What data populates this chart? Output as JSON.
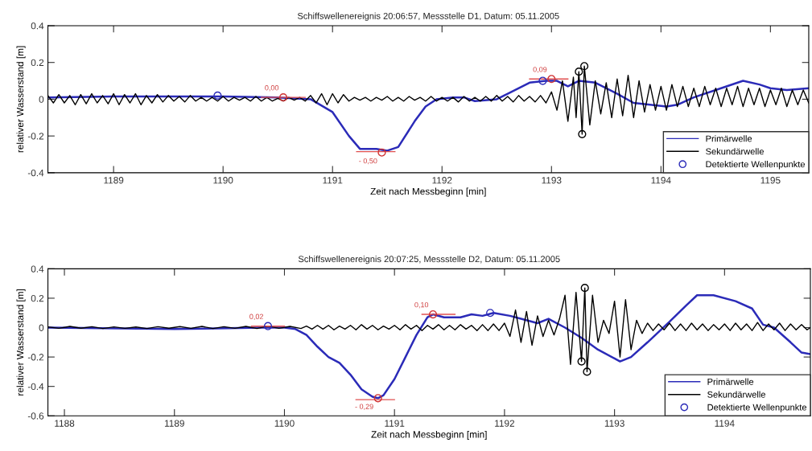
{
  "chart_data": [
    {
      "type": "line",
      "title": "Schiffswellenereignis 20:06:57, Messstelle D1, Datum: 05.11.2005",
      "xlabel": "Zeit nach Messbeginn [min]",
      "ylabel": "relativer Wasserstand [m]",
      "xlim": [
        1188.4,
        1195.35
      ],
      "ylim": [
        -0.4,
        0.4
      ],
      "xticks": [
        1189,
        1190,
        1191,
        1192,
        1193,
        1194,
        1195
      ],
      "yticks": [
        -0.4,
        -0.2,
        0,
        0.2,
        0.4
      ],
      "grid": false,
      "legend": "bottom right",
      "annotations": [
        {
          "text": "0,00",
          "x": 1190.55,
          "y": 0.01
        },
        {
          "text": "- 0,50",
          "x": 1191.45,
          "y": -0.29
        },
        {
          "text": "0,09",
          "x": 1193.0,
          "y": 0.11
        }
      ],
      "series": [
        {
          "name": "Sekundärwelle",
          "type": "line",
          "color": "#000000",
          "x": [
            1188.4,
            1188.45,
            1188.5,
            1188.55,
            1188.6,
            1188.65,
            1188.7,
            1188.75,
            1188.8,
            1188.85,
            1188.9,
            1188.95,
            1189.0,
            1189.05,
            1189.1,
            1189.15,
            1189.2,
            1189.25,
            1189.3,
            1189.35,
            1189.4,
            1189.45,
            1189.5,
            1189.55,
            1189.6,
            1189.65,
            1189.7,
            1189.75,
            1189.8,
            1189.85,
            1189.9,
            1189.95,
            1190.0,
            1190.05,
            1190.1,
            1190.15,
            1190.2,
            1190.25,
            1190.3,
            1190.35,
            1190.4,
            1190.45,
            1190.5,
            1190.55,
            1190.6,
            1190.65,
            1190.7,
            1190.75,
            1190.8,
            1190.85,
            1190.9,
            1190.95,
            1191.0,
            1191.05,
            1191.1,
            1191.15,
            1191.2,
            1191.25,
            1191.3,
            1191.35,
            1191.4,
            1191.45,
            1191.5,
            1191.55,
            1191.6,
            1191.65,
            1191.7,
            1191.75,
            1191.8,
            1191.85,
            1191.9,
            1191.95,
            1192.0,
            1192.05,
            1192.1,
            1192.15,
            1192.2,
            1192.25,
            1192.3,
            1192.35,
            1192.4,
            1192.45,
            1192.5,
            1192.55,
            1192.6,
            1192.65,
            1192.7,
            1192.75,
            1192.8,
            1192.85,
            1192.9,
            1192.95,
            1193.0,
            1193.05,
            1193.1,
            1193.15,
            1193.2,
            1193.225,
            1193.25,
            1193.28,
            1193.3,
            1193.35,
            1193.4,
            1193.45,
            1193.5,
            1193.55,
            1193.6,
            1193.65,
            1193.7,
            1193.75,
            1193.8,
            1193.85,
            1193.9,
            1193.95,
            1194.0,
            1194.05,
            1194.1,
            1194.15,
            1194.2,
            1194.25,
            1194.3,
            1194.35,
            1194.4,
            1194.45,
            1194.5,
            1194.55,
            1194.6,
            1194.65,
            1194.7,
            1194.75,
            1194.8,
            1194.85,
            1194.9,
            1194.95,
            1195.0,
            1195.05,
            1195.1,
            1195.15,
            1195.2,
            1195.25,
            1195.3,
            1195.35
          ],
          "values": [
            0.02,
            -0.02,
            0.025,
            -0.02,
            0.02,
            -0.03,
            0.025,
            -0.025,
            0.03,
            -0.02,
            0.02,
            -0.025,
            0.03,
            -0.03,
            0.025,
            -0.02,
            0.03,
            -0.03,
            0.02,
            -0.02,
            0.025,
            -0.015,
            0.02,
            -0.01,
            0.015,
            -0.015,
            0.02,
            -0.01,
            0.01,
            -0.01,
            0.01,
            -0.01,
            0.015,
            -0.01,
            0.01,
            -0.005,
            0.01,
            -0.01,
            0.015,
            -0.01,
            0.01,
            -0.01,
            0.005,
            -0.01,
            0.01,
            -0.005,
            0.01,
            -0.01,
            0.02,
            -0.02,
            0.03,
            -0.03,
            0.03,
            -0.02,
            0.025,
            -0.01,
            0.01,
            -0.005,
            0.01,
            -0.01,
            0.01,
            -0.005,
            0.015,
            -0.01,
            0.01,
            -0.01,
            0.015,
            -0.005,
            0.01,
            -0.01,
            0.015,
            -0.01,
            0.01,
            -0.01,
            0.01,
            -0.015,
            0.015,
            -0.01,
            0.01,
            -0.01,
            0.015,
            -0.01,
            0.02,
            -0.01,
            0.015,
            -0.015,
            0.02,
            -0.01,
            0.015,
            -0.015,
            0.02,
            -0.02,
            0.04,
            -0.06,
            0.1,
            -0.12,
            0.12,
            -0.1,
            0.15,
            -0.19,
            0.18,
            -0.14,
            0.1,
            -0.08,
            0.09,
            -0.1,
            0.11,
            -0.09,
            0.13,
            -0.1,
            0.1,
            -0.07,
            0.08,
            -0.06,
            0.07,
            -0.06,
            0.08,
            -0.04,
            0.07,
            -0.04,
            0.06,
            -0.04,
            0.07,
            -0.03,
            0.06,
            -0.04,
            0.06,
            -0.03,
            0.07,
            -0.04,
            0.06,
            -0.03,
            0.06,
            -0.04,
            0.05,
            -0.03,
            0.06,
            -0.04,
            0.05,
            -0.03,
            0.05,
            -0.02
          ]
        },
        {
          "name": "Primärwelle",
          "type": "line",
          "color": "#2b2bb8",
          "x": [
            1188.4,
            1189.0,
            1190.0,
            1190.5,
            1190.8,
            1191.0,
            1191.15,
            1191.25,
            1191.4,
            1191.5,
            1191.6,
            1191.75,
            1191.85,
            1191.95,
            1192.1,
            1192.2,
            1192.3,
            1192.5,
            1192.6,
            1192.8,
            1192.95,
            1193.05,
            1193.15,
            1193.25,
            1193.4,
            1193.6,
            1193.75,
            1193.9,
            1194.05,
            1194.15,
            1194.3,
            1194.5,
            1194.75,
            1194.9,
            1195.0,
            1195.15,
            1195.35
          ],
          "values": [
            0.01,
            0.015,
            0.015,
            0.01,
            0.0,
            -0.07,
            -0.2,
            -0.27,
            -0.27,
            -0.28,
            -0.26,
            -0.12,
            -0.04,
            0.0,
            0.01,
            0.01,
            -0.01,
            0.0,
            0.03,
            0.09,
            0.1,
            0.1,
            0.07,
            0.1,
            0.09,
            0.03,
            -0.02,
            -0.03,
            -0.04,
            -0.03,
            0.01,
            0.05,
            0.1,
            0.08,
            0.06,
            0.05,
            0.06
          ]
        },
        {
          "color": "#e05050",
          "x": [
            1190.35,
            1190.75
          ],
          "values": [
            0.01,
            0.01
          ]
        },
        {
          "color": "#e05050",
          "x": [
            1191.22,
            1191.57
          ],
          "values": [
            -0.285,
            -0.285
          ]
        },
        {
          "color": "#e05050",
          "x": [
            1192.8,
            1193.15
          ],
          "values": [
            0.11,
            0.11
          ]
        },
        {
          "name": "Detektierte Wellenpunkte",
          "type": "scatter",
          "marker": "circle",
          "color": "#2b2bb8",
          "x": [
            1189.95,
            1192.92
          ],
          "values": [
            0.02,
            0.1
          ]
        },
        {
          "type": "scatter",
          "marker": "circle",
          "color": "#d03030",
          "x": [
            1190.55,
            1191.45,
            1193.0
          ],
          "values": [
            0.01,
            -0.29,
            0.11
          ]
        },
        {
          "type": "scatter",
          "marker": "circle",
          "color": "#000000",
          "x": [
            1193.25,
            1193.28,
            1193.3
          ],
          "values": [
            0.15,
            -0.19,
            0.18
          ]
        }
      ]
    },
    {
      "type": "line",
      "title": "Schiffswellenereignis 20:07:25, Messstelle D2, Datum: 05.11.2005",
      "xlabel": "Zeit nach Messbeginn [min]",
      "ylabel": "relativer Wasserstand [m]",
      "xlim": [
        1187.85,
        1194.78
      ],
      "ylim": [
        -0.6,
        0.4
      ],
      "xticks": [
        1188,
        1189,
        1190,
        1191,
        1192,
        1193,
        1194
      ],
      "yticks": [
        -0.6,
        -0.4,
        -0.2,
        0,
        0.2,
        0.4
      ],
      "grid": false,
      "legend": "bottom right",
      "annotations": [
        {
          "text": "0,02",
          "x": 1189.85,
          "y": 0.01
        },
        {
          "text": "- 0,29",
          "x": 1190.85,
          "y": -0.48
        },
        {
          "text": "0,10",
          "x": 1191.35,
          "y": 0.09
        }
      ],
      "series": [
        {
          "name": "Sekundärwelle",
          "type": "line",
          "color": "#000000",
          "x": [
            1187.85,
            1187.95,
            1188.05,
            1188.15,
            1188.25,
            1188.35,
            1188.45,
            1188.55,
            1188.65,
            1188.75,
            1188.85,
            1188.95,
            1189.05,
            1189.15,
            1189.25,
            1189.35,
            1189.45,
            1189.55,
            1189.65,
            1189.75,
            1189.85,
            1189.95,
            1190.05,
            1190.15,
            1190.2,
            1190.25,
            1190.3,
            1190.35,
            1190.4,
            1190.45,
            1190.5,
            1190.55,
            1190.6,
            1190.65,
            1190.7,
            1190.75,
            1190.8,
            1190.85,
            1190.9,
            1190.95,
            1191.0,
            1191.05,
            1191.1,
            1191.15,
            1191.2,
            1191.25,
            1191.3,
            1191.35,
            1191.4,
            1191.45,
            1191.5,
            1191.55,
            1191.6,
            1191.65,
            1191.7,
            1191.75,
            1191.8,
            1191.85,
            1191.9,
            1191.95,
            1192.0,
            1192.05,
            1192.1,
            1192.15,
            1192.2,
            1192.25,
            1192.3,
            1192.35,
            1192.4,
            1192.45,
            1192.5,
            1192.55,
            1192.6,
            1192.65,
            1192.7,
            1192.73,
            1192.75,
            1192.8,
            1192.85,
            1192.9,
            1192.95,
            1193.0,
            1193.05,
            1193.1,
            1193.15,
            1193.2,
            1193.25,
            1193.3,
            1193.35,
            1193.4,
            1193.45,
            1193.5,
            1193.55,
            1193.6,
            1193.65,
            1193.7,
            1193.75,
            1193.8,
            1193.85,
            1193.9,
            1193.95,
            1194.0,
            1194.05,
            1194.1,
            1194.15,
            1194.2,
            1194.25,
            1194.3,
            1194.35,
            1194.4,
            1194.45,
            1194.5,
            1194.55,
            1194.6,
            1194.65,
            1194.7,
            1194.75,
            1194.78
          ],
          "values": [
            0.005,
            -0.005,
            0.008,
            -0.004,
            0.006,
            -0.006,
            0.005,
            -0.005,
            0.004,
            -0.006,
            0.006,
            -0.004,
            0.007,
            -0.005,
            0.008,
            -0.006,
            0.006,
            -0.005,
            0.008,
            -0.006,
            0.01,
            -0.005,
            0.008,
            -0.006,
            0.01,
            -0.01,
            0.015,
            -0.01,
            0.015,
            -0.015,
            0.01,
            -0.01,
            0.015,
            -0.015,
            0.02,
            -0.01,
            0.015,
            -0.015,
            0.01,
            -0.01,
            0.015,
            -0.015,
            0.02,
            -0.01,
            0.015,
            -0.02,
            0.015,
            -0.01,
            0.02,
            -0.015,
            0.015,
            -0.015,
            0.02,
            -0.01,
            0.015,
            -0.02,
            0.02,
            -0.02,
            0.025,
            -0.02,
            0.03,
            -0.06,
            0.12,
            -0.1,
            0.11,
            -0.12,
            0.08,
            -0.06,
            0.05,
            -0.05,
            0.06,
            0.22,
            -0.25,
            0.24,
            -0.23,
            0.27,
            -0.3,
            0.22,
            -0.1,
            0.05,
            -0.04,
            0.18,
            -0.2,
            0.19,
            -0.15,
            0.05,
            -0.04,
            0.03,
            -0.02,
            0.025,
            -0.015,
            0.03,
            -0.02,
            0.025,
            -0.02,
            0.03,
            -0.015,
            0.025,
            -0.02,
            0.02,
            -0.015,
            0.025,
            -0.02,
            0.03,
            -0.015,
            0.025,
            -0.02,
            0.035,
            -0.02,
            0.025,
            -0.015,
            0.03,
            -0.02,
            0.025,
            -0.015,
            0.02,
            -0.015,
            0.0
          ]
        },
        {
          "name": "Primärwelle",
          "type": "line",
          "color": "#2b2bb8",
          "x": [
            1187.85,
            1189.0,
            1189.8,
            1190.0,
            1190.1,
            1190.2,
            1190.3,
            1190.4,
            1190.5,
            1190.6,
            1190.7,
            1190.8,
            1190.85,
            1190.9,
            1191.0,
            1191.1,
            1191.2,
            1191.3,
            1191.35,
            1191.45,
            1191.6,
            1191.7,
            1191.8,
            1191.9,
            1192.05,
            1192.15,
            1192.3,
            1192.4,
            1192.55,
            1192.7,
            1192.85,
            1193.0,
            1193.05,
            1193.15,
            1193.3,
            1193.5,
            1193.65,
            1193.75,
            1193.9,
            1194.1,
            1194.25,
            1194.35,
            1194.45,
            1194.6,
            1194.7,
            1194.78
          ],
          "values": [
            0.0,
            -0.01,
            0.0,
            0.0,
            -0.01,
            -0.05,
            -0.13,
            -0.2,
            -0.24,
            -0.32,
            -0.42,
            -0.47,
            -0.48,
            -0.46,
            -0.35,
            -0.2,
            -0.05,
            0.07,
            0.09,
            0.07,
            0.07,
            0.09,
            0.08,
            0.1,
            0.08,
            0.06,
            0.03,
            0.06,
            0.0,
            -0.07,
            -0.15,
            -0.21,
            -0.23,
            -0.2,
            -0.1,
            0.04,
            0.15,
            0.22,
            0.22,
            0.18,
            0.13,
            0.02,
            0.0,
            -0.1,
            -0.17,
            -0.18
          ]
        },
        {
          "color": "#e05050",
          "x": [
            1189.7,
            1190.0
          ],
          "values": [
            0.01,
            0.01
          ]
        },
        {
          "color": "#e05050",
          "x": [
            1190.65,
            1191.0
          ],
          "values": [
            -0.49,
            -0.49
          ]
        },
        {
          "color": "#e05050",
          "x": [
            1191.25,
            1191.55
          ],
          "values": [
            0.09,
            0.09
          ]
        },
        {
          "name": "Detektierte Wellenpunkte",
          "type": "scatter",
          "marker": "circle",
          "color": "#2b2bb8",
          "x": [
            1189.85,
            1191.87
          ],
          "values": [
            0.01,
            0.1
          ]
        },
        {
          "type": "scatter",
          "marker": "circle",
          "color": "#d03030",
          "x": [
            1190.85,
            1191.35
          ],
          "values": [
            -0.48,
            0.09
          ]
        },
        {
          "type": "scatter",
          "marker": "circle",
          "color": "#000000",
          "x": [
            1192.7,
            1192.73,
            1192.75
          ],
          "values": [
            -0.23,
            0.27,
            -0.3
          ]
        }
      ]
    }
  ]
}
